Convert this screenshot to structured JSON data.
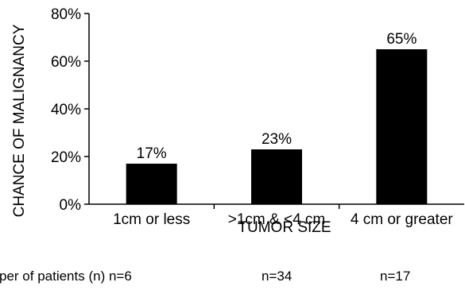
{
  "chart_data": {
    "type": "bar",
    "categories": [
      "1cm or less",
      ">1cm & <4 cm",
      "4 cm or greater"
    ],
    "values": [
      17,
      23,
      65
    ],
    "data_labels": [
      "17%",
      "23%",
      "65%"
    ],
    "xlabel": "TUMOR SIZE",
    "ylabel": "CHANCE OF MALIGNANCY",
    "ylim": [
      0,
      80
    ],
    "yticks": [
      {
        "value": 0,
        "label": "0%"
      },
      {
        "value": 20,
        "label": "20%"
      },
      {
        "value": 40,
        "label": "40%"
      },
      {
        "value": 60,
        "label": "60%"
      },
      {
        "value": 80,
        "label": "80%"
      }
    ],
    "grid": false,
    "bar_color": "#000000"
  },
  "footnote": {
    "label": "per of patients (n) n=6",
    "n2": "n=34",
    "n3": "n=17"
  }
}
